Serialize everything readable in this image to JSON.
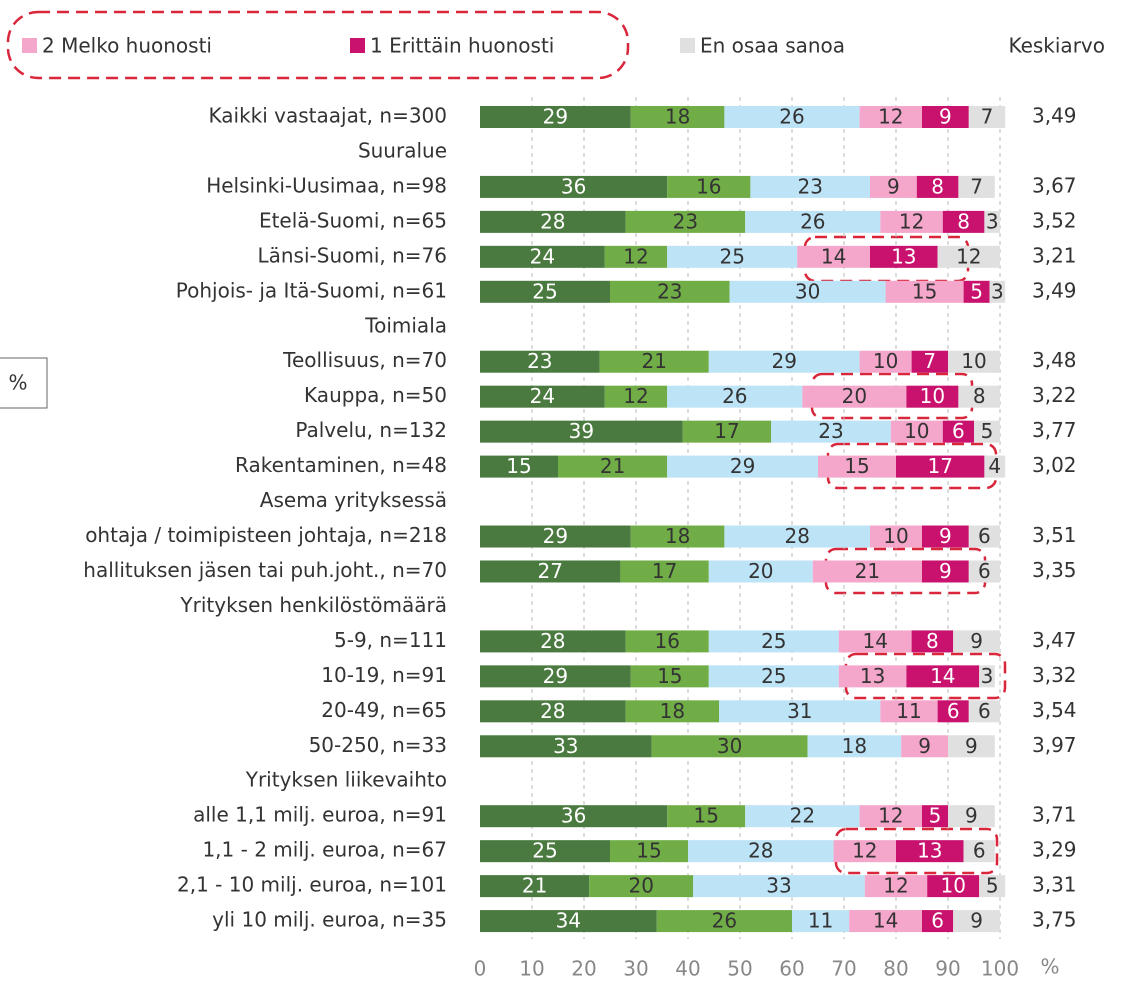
{
  "chart_data": {
    "type": "stacked-barh",
    "categories": [
      "Kaikki vastaajat, n=300",
      "Suuralue",
      "Helsinki-Uusimaa, n=98",
      "Etelä-Suomi, n=65",
      "Länsi-Suomi, n=76",
      "Pohjois- ja Itä-Suomi, n=61",
      "Toimiala",
      "Teollisuus, n=70",
      "Kauppa, n=50",
      "Palvelu, n=132",
      "Rakentaminen, n=48",
      "Asema yrityksessä",
      "ohtaja / toimipisteen johtaja, n=218",
      "hallituksen jäsen tai puh.joht., n=70",
      "Yrityksen henkilöstömäärä",
      "5-9, n=111",
      "10-19, n=91",
      "20-49, n=65",
      "50-250, n=33",
      "Yrityksen liikevaihto",
      "alle 1,1 milj. euroa, n=91",
      "1,1 - 2 milj. euroa, n=67",
      "2,1 - 10 milj. euroa, n=101",
      "yli 10 milj. euroa, n=35"
    ],
    "series": [
      {
        "color": "#4a7a3f",
        "label_color": "#ffffff",
        "values": [
          29,
          null,
          36,
          28,
          24,
          25,
          null,
          23,
          24,
          39,
          15,
          null,
          29,
          27,
          null,
          28,
          29,
          28,
          33,
          null,
          36,
          25,
          21,
          34
        ]
      },
      {
        "color": "#70ad47",
        "label_color": "#333333",
        "values": [
          18,
          null,
          16,
          23,
          12,
          23,
          null,
          21,
          12,
          17,
          21,
          null,
          18,
          17,
          null,
          16,
          15,
          18,
          30,
          null,
          15,
          15,
          20,
          26
        ]
      },
      {
        "color": "#bde3f7",
        "label_color": "#333333",
        "values": [
          26,
          null,
          23,
          26,
          25,
          30,
          null,
          29,
          26,
          23,
          29,
          null,
          28,
          20,
          null,
          25,
          25,
          31,
          18,
          null,
          22,
          28,
          33,
          11
        ]
      },
      {
        "name": "2 Melko huonosti",
        "color": "#f4a6cb",
        "label_color": "#333333",
        "values": [
          12,
          null,
          9,
          12,
          14,
          15,
          null,
          10,
          20,
          10,
          15,
          null,
          10,
          21,
          null,
          14,
          13,
          11,
          9,
          null,
          12,
          12,
          12,
          14
        ]
      },
      {
        "name": "1 Erittäin huonosti",
        "color": "#c8126e",
        "label_color": "#ffffff",
        "values": [
          9,
          null,
          8,
          8,
          13,
          5,
          null,
          7,
          10,
          6,
          17,
          null,
          9,
          9,
          null,
          8,
          14,
          6,
          null,
          null,
          5,
          13,
          10,
          6
        ]
      },
      {
        "name": "En osaa sanoa",
        "color": "#e0e0e0",
        "label_color": "#333333",
        "values": [
          7,
          null,
          7,
          3,
          12,
          3,
          null,
          10,
          8,
          5,
          4,
          null,
          6,
          6,
          null,
          9,
          3,
          6,
          9,
          null,
          9,
          6,
          5,
          9
        ]
      }
    ],
    "mean": {
      "name": "Keskiarvo",
      "values": [
        3.49,
        null,
        3.67,
        3.52,
        3.21,
        3.49,
        null,
        3.48,
        3.22,
        3.77,
        3.02,
        null,
        3.51,
        3.35,
        null,
        3.47,
        3.32,
        3.54,
        3.97,
        null,
        3.71,
        3.29,
        3.31,
        3.75
      ],
      "value_labels": [
        "3,49",
        null,
        "3,67",
        "3,52",
        "3,21",
        "3,49",
        null,
        "3,48",
        "3,22",
        "3,77",
        "3,02",
        null,
        "3,51",
        "3,35",
        null,
        "3,47",
        "3,32",
        "3,54",
        "3,97",
        null,
        "3,71",
        "3,29",
        "3,31",
        "3,75"
      ]
    },
    "xlim": [
      0,
      100
    ],
    "xticks": [
      0,
      10,
      20,
      30,
      40,
      50,
      60,
      70,
      80,
      90,
      100
    ],
    "x_unit": "%",
    "side_label": "%",
    "grid": true
  }
}
